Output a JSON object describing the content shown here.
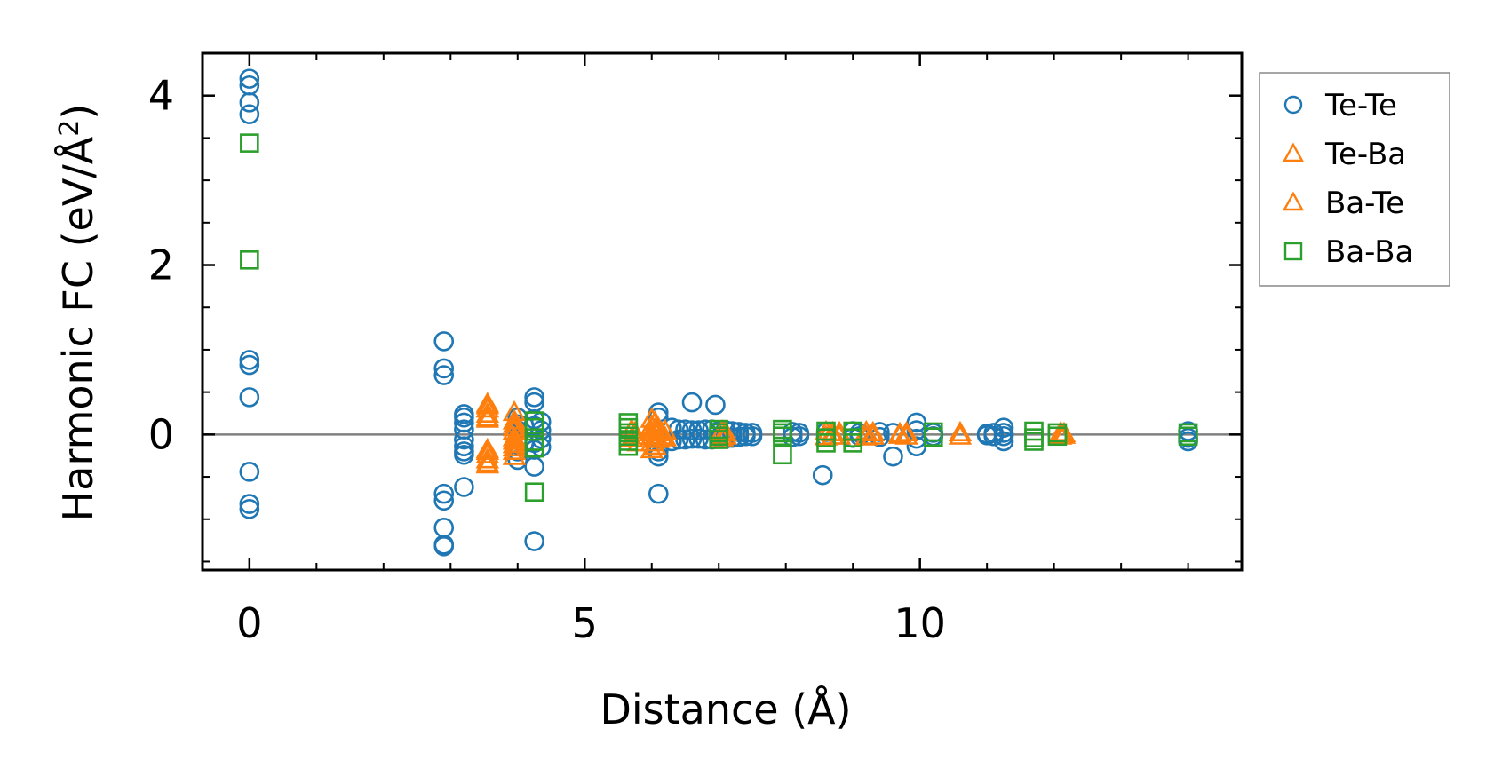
{
  "chart_data": {
    "type": "scatter",
    "title": "",
    "xlabel": "Distance (Å)",
    "ylabel": "Harmonic FC (eV/Å²)",
    "ylabel_parts": {
      "pre": "Harmonic FC (eV/Å",
      "sup": "2",
      "post": ")"
    },
    "xlim": [
      -0.7,
      14.8
    ],
    "ylim": [
      -1.6,
      4.5
    ],
    "x_ticks": [
      0,
      5,
      10
    ],
    "x_tick_labels": [
      "0",
      "5",
      "10"
    ],
    "x_minor_ticks": [
      1,
      2,
      3,
      4,
      6,
      7,
      8,
      9,
      11,
      12,
      13,
      14
    ],
    "y_ticks": [
      0,
      2,
      4
    ],
    "y_tick_labels": [
      "0",
      "2",
      "4"
    ],
    "y_minor_ticks": [
      -1.5,
      -1,
      -0.5,
      0.5,
      1,
      1.5,
      2.5,
      3,
      3.5
    ],
    "reference_line_y": 0,
    "grid": false,
    "legend_position": "outside-right",
    "series": [
      {
        "name": "Te-Te",
        "marker": "circle",
        "color": "#1f77b4",
        "points": [
          [
            0,
            4.2
          ],
          [
            0,
            4.12
          ],
          [
            0,
            3.92
          ],
          [
            0,
            3.78
          ],
          [
            0,
            0.88
          ],
          [
            0,
            0.82
          ],
          [
            0,
            0.44
          ],
          [
            0,
            -0.44
          ],
          [
            0,
            -0.82
          ],
          [
            0,
            -0.88
          ],
          [
            2.9,
            1.1
          ],
          [
            2.9,
            0.78
          ],
          [
            2.9,
            0.7
          ],
          [
            2.9,
            -0.7
          ],
          [
            2.9,
            -0.78
          ],
          [
            2.9,
            -1.1
          ],
          [
            2.9,
            -1.3
          ],
          [
            2.9,
            -1.32
          ],
          [
            3.2,
            0.24
          ],
          [
            3.2,
            0.2
          ],
          [
            3.2,
            0.14
          ],
          [
            3.2,
            0.06
          ],
          [
            3.2,
            -0.06
          ],
          [
            3.2,
            -0.14
          ],
          [
            3.2,
            -0.2
          ],
          [
            3.2,
            -0.24
          ],
          [
            3.2,
            -0.62
          ],
          [
            4.0,
            0.2
          ],
          [
            4.0,
            0.12
          ],
          [
            4.0,
            0.05
          ],
          [
            4.0,
            -0.05
          ],
          [
            4.0,
            -0.12
          ],
          [
            4.0,
            -0.2
          ],
          [
            4.0,
            -0.3
          ],
          [
            4.1,
            0.1
          ],
          [
            4.1,
            -0.1
          ],
          [
            4.25,
            0.44
          ],
          [
            4.25,
            0.38
          ],
          [
            4.25,
            0.18
          ],
          [
            4.25,
            0.1
          ],
          [
            4.25,
            -0.1
          ],
          [
            4.25,
            -0.18
          ],
          [
            4.25,
            -0.38
          ],
          [
            4.25,
            -1.26
          ],
          [
            4.35,
            0.15
          ],
          [
            4.35,
            0.05
          ],
          [
            4.35,
            -0.05
          ],
          [
            4.35,
            -0.15
          ],
          [
            6.1,
            0.26
          ],
          [
            6.1,
            0.2
          ],
          [
            6.1,
            -0.2
          ],
          [
            6.1,
            -0.26
          ],
          [
            6.1,
            -0.7
          ],
          [
            6.3,
            0.08
          ],
          [
            6.3,
            -0.08
          ],
          [
            6.4,
            0.06
          ],
          [
            6.4,
            -0.06
          ],
          [
            6.5,
            0.06
          ],
          [
            6.5,
            -0.06
          ],
          [
            6.6,
            0.38
          ],
          [
            6.6,
            0.05
          ],
          [
            6.6,
            -0.05
          ],
          [
            6.7,
            0.05
          ],
          [
            6.7,
            -0.05
          ],
          [
            6.8,
            0.06
          ],
          [
            6.8,
            -0.06
          ],
          [
            6.9,
            0.06
          ],
          [
            6.9,
            -0.06
          ],
          [
            6.95,
            0.35
          ],
          [
            7.0,
            0.04
          ],
          [
            7.0,
            -0.04
          ],
          [
            7.1,
            0.05
          ],
          [
            7.1,
            -0.05
          ],
          [
            7.2,
            0.04
          ],
          [
            7.2,
            -0.04
          ],
          [
            7.3,
            0.03
          ],
          [
            7.3,
            -0.03
          ],
          [
            7.4,
            0.02
          ],
          [
            7.4,
            -0.02
          ],
          [
            7.5,
            0.02
          ],
          [
            7.5,
            -0.02
          ],
          [
            8.1,
            0.03
          ],
          [
            8.1,
            -0.03
          ],
          [
            8.2,
            0.02
          ],
          [
            8.2,
            -0.02
          ],
          [
            8.55,
            -0.48
          ],
          [
            8.6,
            0.03
          ],
          [
            8.6,
            -0.03
          ],
          [
            9.0,
            0.04
          ],
          [
            9.0,
            -0.04
          ],
          [
            9.1,
            0.02
          ],
          [
            9.1,
            -0.02
          ],
          [
            9.4,
            0.03
          ],
          [
            9.4,
            -0.03
          ],
          [
            9.6,
            -0.26
          ],
          [
            9.6,
            0.02
          ],
          [
            9.95,
            0.14
          ],
          [
            9.95,
            0.05
          ],
          [
            9.95,
            -0.05
          ],
          [
            9.95,
            -0.14
          ],
          [
            10.2,
            0.02
          ],
          [
            10.2,
            -0.02
          ],
          [
            11.0,
            0.01
          ],
          [
            11.0,
            -0.01
          ],
          [
            11.1,
            0.02
          ],
          [
            11.1,
            -0.02
          ],
          [
            11.25,
            0.08
          ],
          [
            11.25,
            0.02
          ],
          [
            11.25,
            -0.02
          ],
          [
            11.25,
            -0.08
          ],
          [
            14.0,
            0.04
          ],
          [
            14.0,
            -0.04
          ],
          [
            14.0,
            -0.08
          ]
        ]
      },
      {
        "name": "Te-Ba",
        "marker": "triangle",
        "color": "#ff7f0e",
        "points": [
          [
            3.55,
            0.36
          ],
          [
            3.55,
            0.3
          ],
          [
            3.55,
            0.24
          ],
          [
            3.55,
            0.18
          ],
          [
            3.55,
            -0.18
          ],
          [
            3.55,
            -0.24
          ],
          [
            3.55,
            -0.3
          ],
          [
            3.55,
            -0.36
          ],
          [
            3.95,
            0.26
          ],
          [
            3.95,
            0.12
          ],
          [
            3.95,
            0.04
          ],
          [
            3.95,
            -0.04
          ],
          [
            3.95,
            -0.12
          ],
          [
            3.95,
            -0.2
          ],
          [
            3.95,
            -0.26
          ],
          [
            5.7,
            0.05
          ],
          [
            5.7,
            -0.05
          ],
          [
            5.8,
            -0.1
          ],
          [
            6.0,
            0.18
          ],
          [
            6.0,
            0.1
          ],
          [
            6.0,
            0.03
          ],
          [
            6.0,
            -0.03
          ],
          [
            6.0,
            -0.1
          ],
          [
            6.0,
            -0.18
          ],
          [
            6.1,
            0.06
          ],
          [
            6.1,
            -0.06
          ],
          [
            6.2,
            0.04
          ],
          [
            6.2,
            -0.04
          ],
          [
            7.05,
            0.04
          ],
          [
            7.05,
            -0.04
          ],
          [
            8.6,
            0.03
          ],
          [
            8.6,
            -0.03
          ],
          [
            8.8,
            0.02
          ],
          [
            8.8,
            -0.02
          ],
          [
            9.2,
            0.03
          ],
          [
            9.2,
            -0.03
          ],
          [
            9.8,
            0.02
          ],
          [
            9.8,
            -0.02
          ],
          [
            10.6,
            0.02
          ],
          [
            10.6,
            -0.02
          ],
          [
            12.15,
            0.01
          ],
          [
            12.15,
            -0.01
          ]
        ]
      },
      {
        "name": "Ba-Te",
        "marker": "triangle",
        "color": "#ff7f0e",
        "points": [
          [
            3.55,
            0.34
          ],
          [
            3.55,
            0.2
          ],
          [
            3.55,
            -0.2
          ],
          [
            3.55,
            -0.34
          ],
          [
            3.95,
            0.16
          ],
          [
            3.95,
            0.08
          ],
          [
            3.95,
            -0.08
          ],
          [
            3.95,
            -0.16
          ],
          [
            5.75,
            0.02
          ],
          [
            5.75,
            -0.02
          ],
          [
            6.05,
            0.14
          ],
          [
            6.05,
            0.06
          ],
          [
            6.05,
            -0.06
          ],
          [
            6.05,
            -0.14
          ],
          [
            6.15,
            0.02
          ],
          [
            6.15,
            -0.02
          ],
          [
            7.1,
            0.02
          ],
          [
            7.1,
            -0.02
          ],
          [
            8.7,
            0.02
          ],
          [
            8.7,
            -0.02
          ],
          [
            9.3,
            0.02
          ],
          [
            9.3,
            -0.02
          ],
          [
            9.7,
            0.01
          ],
          [
            9.7,
            -0.01
          ],
          [
            12.1,
            0.02
          ],
          [
            12.1,
            -0.02
          ]
        ]
      },
      {
        "name": "Ba-Ba",
        "marker": "square",
        "color": "#2ca02c",
        "points": [
          [
            0,
            3.44
          ],
          [
            0,
            2.06
          ],
          [
            4.25,
            0.16
          ],
          [
            4.25,
            0.08
          ],
          [
            4.25,
            -0.08
          ],
          [
            4.25,
            -0.16
          ],
          [
            4.25,
            -0.68
          ],
          [
            5.65,
            0.14
          ],
          [
            5.65,
            0.08
          ],
          [
            5.65,
            0.02
          ],
          [
            5.65,
            -0.02
          ],
          [
            5.65,
            -0.08
          ],
          [
            5.65,
            -0.14
          ],
          [
            7.0,
            0.06
          ],
          [
            7.0,
            0.02
          ],
          [
            7.0,
            -0.02
          ],
          [
            7.0,
            -0.06
          ],
          [
            7.95,
            0.06
          ],
          [
            7.95,
            0.02
          ],
          [
            7.95,
            -0.02
          ],
          [
            7.95,
            -0.24
          ],
          [
            8.6,
            0.04
          ],
          [
            8.6,
            -0.04
          ],
          [
            8.6,
            -0.1
          ],
          [
            9.0,
            0.04
          ],
          [
            9.0,
            -0.04
          ],
          [
            9.0,
            -0.1
          ],
          [
            10.2,
            0.03
          ],
          [
            10.2,
            -0.03
          ],
          [
            11.7,
            0.04
          ],
          [
            11.7,
            -0.04
          ],
          [
            11.7,
            -0.08
          ],
          [
            12.05,
            0.02
          ],
          [
            12.05,
            -0.02
          ],
          [
            14.0,
            0.02
          ],
          [
            14.0,
            -0.02
          ]
        ]
      }
    ]
  }
}
